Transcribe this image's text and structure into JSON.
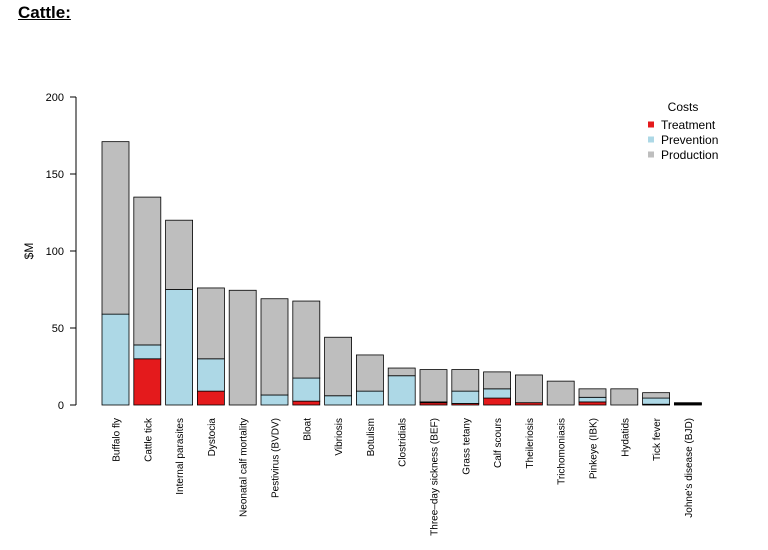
{
  "heading": "Cattle:",
  "chart_data": {
    "type": "bar",
    "stacked": true,
    "title": "",
    "xlabel": "",
    "ylabel": "$M",
    "ylim": [
      0,
      200
    ],
    "yticks": [
      0,
      50,
      100,
      150,
      200
    ],
    "grid": false,
    "legend": {
      "title": "Costs",
      "placement": "top-right"
    },
    "categories": [
      "Buffalo fly",
      "Cattle tick",
      "Internal parasites",
      "Dystocia",
      "Neonatal calf mortality",
      "Pestivirus (BVDV)",
      "Bloat",
      "Vibriosis",
      "Botulism",
      "Clostridials",
      "Three–day sickness (BEF)",
      "Grass tetany",
      "Calf scours",
      "Theileriosis",
      "Trichomoniasis",
      "Pinkeye (IBK)",
      "Hydatids",
      "Tick fever",
      "Johne's disease (BJD)"
    ],
    "series": [
      {
        "name": "Treatment",
        "color": "#e41a1c",
        "values": [
          0,
          30,
          0,
          9,
          0,
          0,
          2.5,
          0,
          0,
          0,
          1.5,
          1,
          4.5,
          1.5,
          0,
          2,
          0,
          0.5,
          0.5
        ]
      },
      {
        "name": "Prevention",
        "color": "#add8e6",
        "values": [
          59,
          9,
          75,
          21,
          0,
          6.5,
          15,
          6,
          9,
          19,
          0.5,
          8,
          6,
          0,
          0,
          3,
          0,
          4,
          0.5
        ]
      },
      {
        "name": "Production",
        "color": "#bebebe",
        "values": [
          112,
          96,
          45,
          46,
          74.5,
          62.5,
          50,
          38,
          23.5,
          5,
          21,
          14,
          11,
          18,
          15.5,
          5.5,
          10.5,
          3.5,
          0.5
        ]
      }
    ]
  }
}
